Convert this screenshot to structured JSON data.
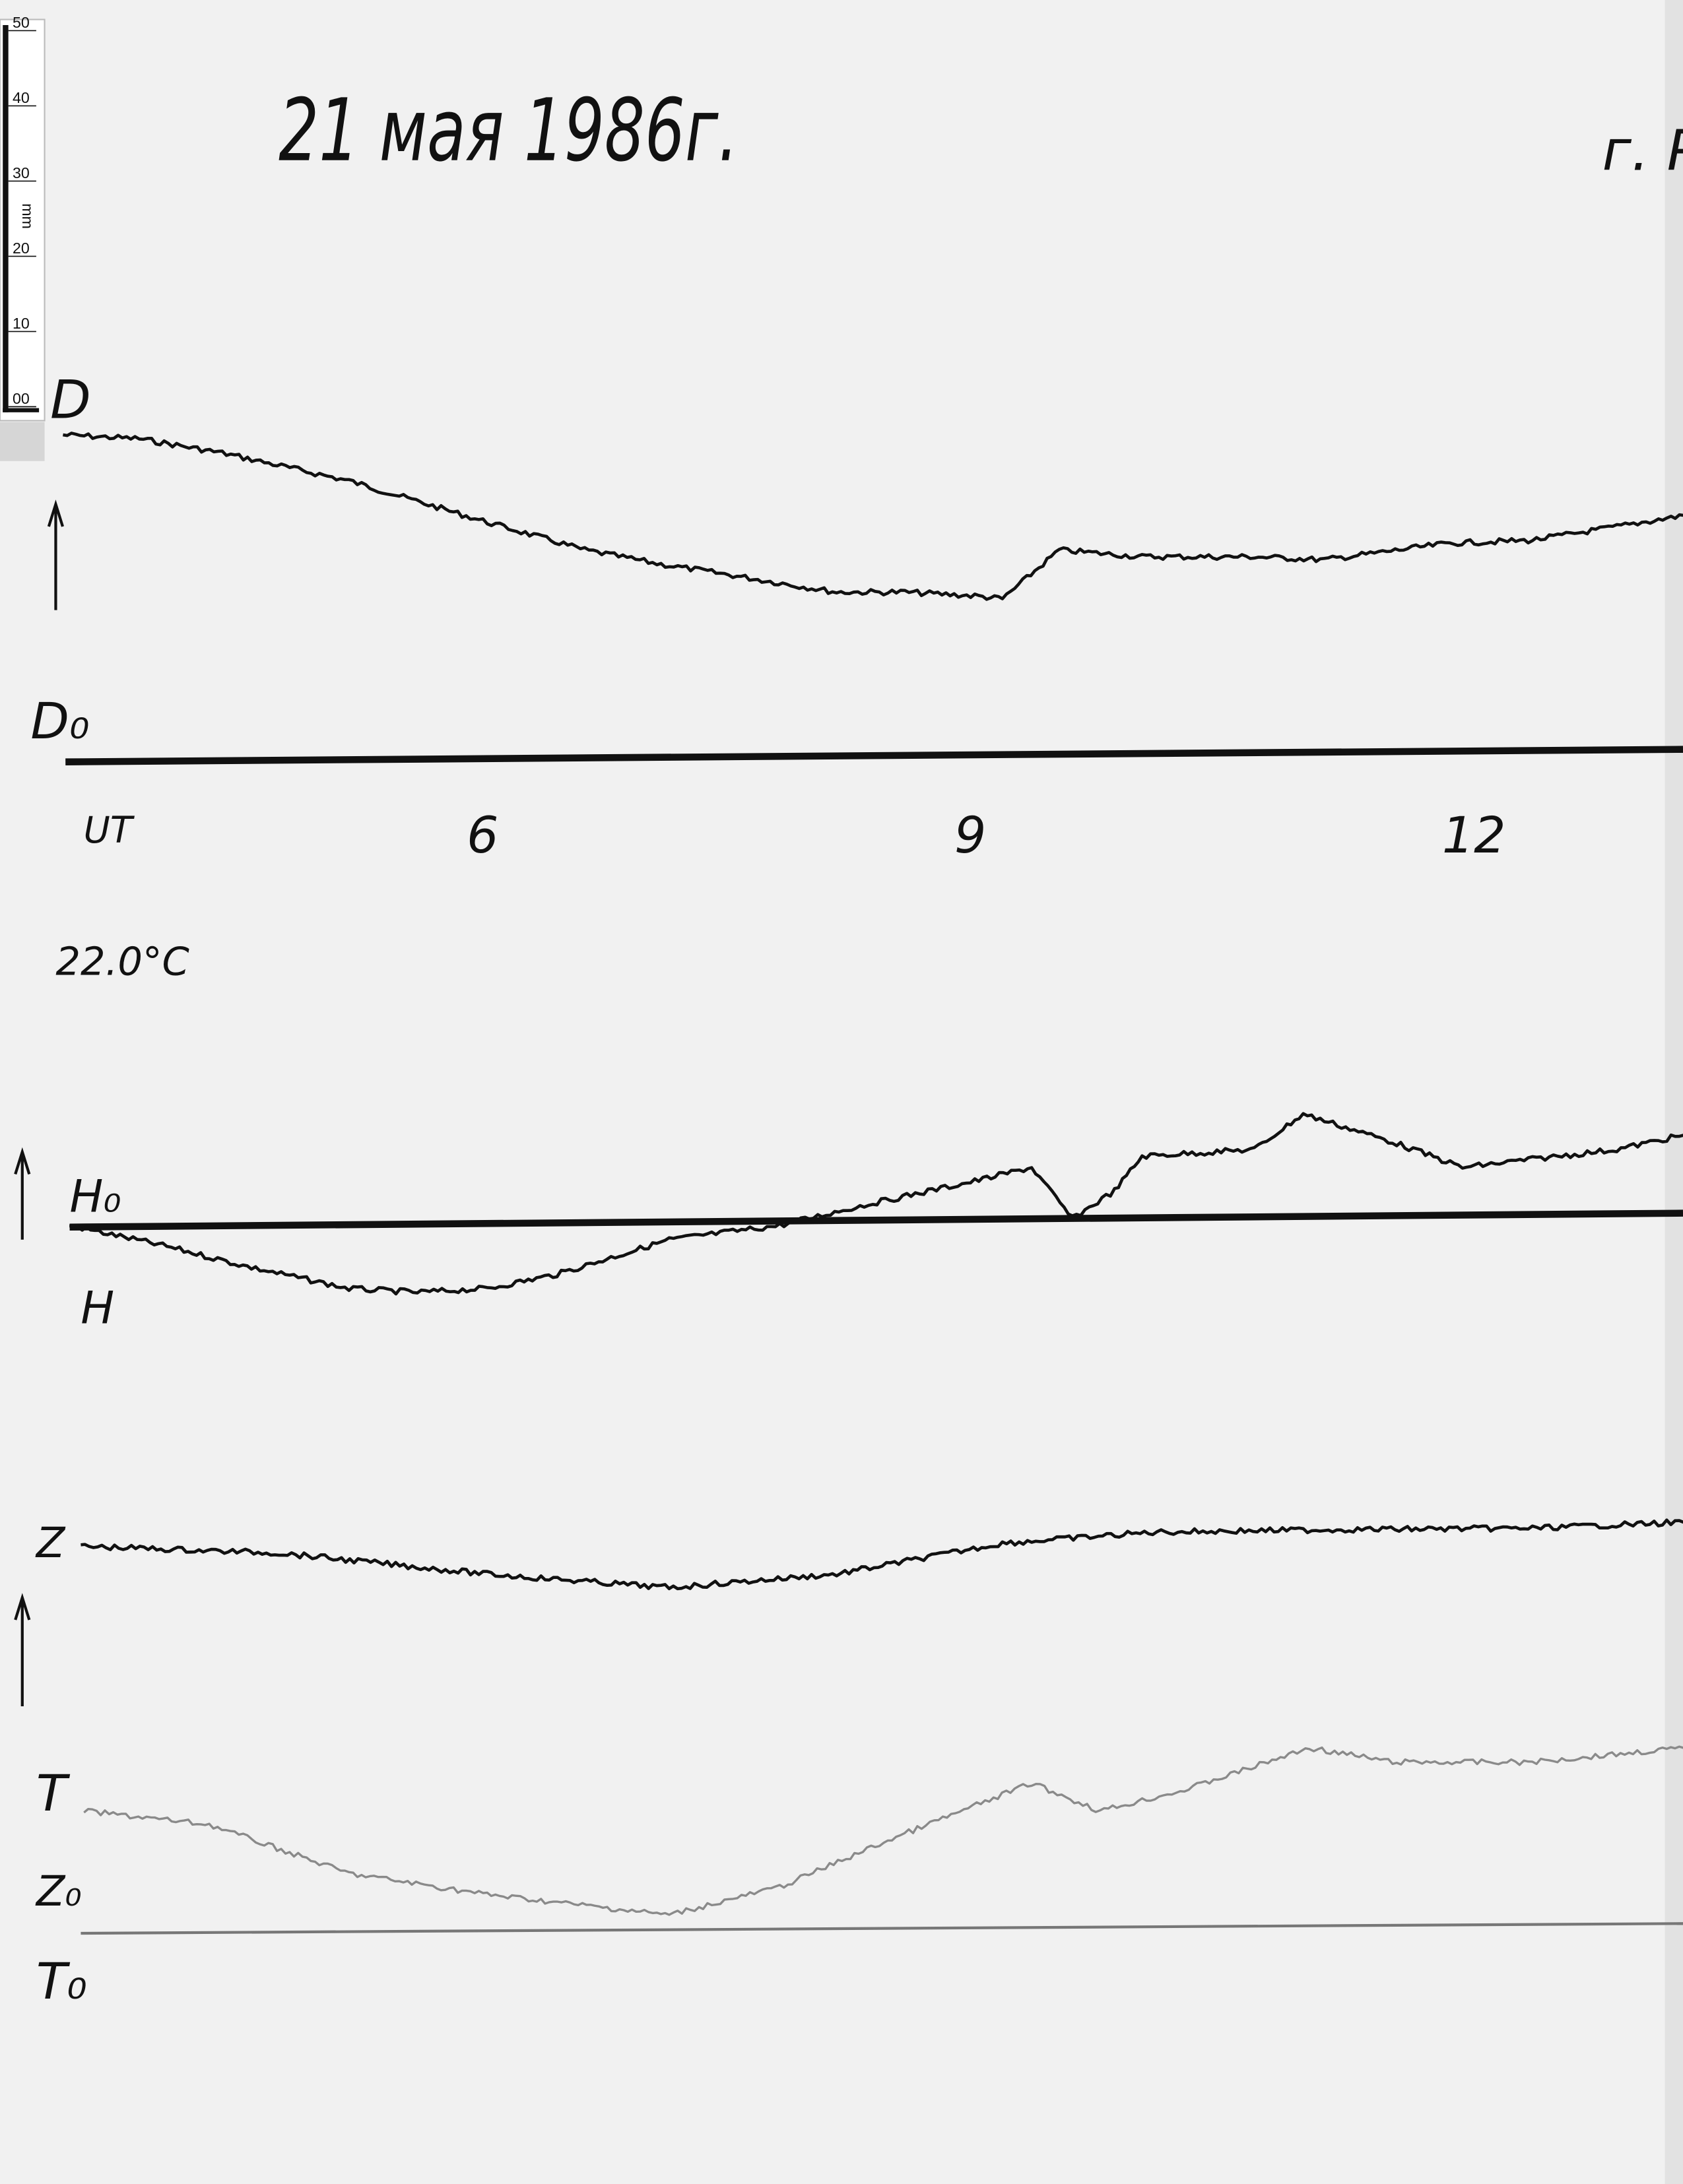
{
  "header": {
    "date": "21 мая 1986г.",
    "place": "г. Р"
  },
  "ruler": {
    "unit": "mm",
    "ticks": [
      "00",
      "10",
      "20",
      "30",
      "40",
      "50"
    ]
  },
  "temperature": "22.0°C",
  "labels": {
    "D": "D",
    "D0": "D₀",
    "H0": "H₀",
    "H": "H",
    "Z": "Z",
    "T": "T",
    "Z0": "Z₀",
    "T0": "T₀"
  },
  "chart_data": {
    "type": "line",
    "title": "21 мая 1986г.",
    "xlabel": "UT",
    "x_tick_labels": [
      "6",
      "9",
      "12"
    ],
    "x_ticks": [
      6,
      9,
      12
    ],
    "xlim": [
      3.4,
      13.4
    ],
    "y_unit": "mm",
    "grid": false,
    "series": [
      {
        "name": "D",
        "baseline": "D₀",
        "color": "#111111",
        "x": [
          3.43,
          3.9,
          4.41,
          5.19,
          6.04,
          6.64,
          7.11,
          7.5,
          8.19,
          8.61,
          9.04,
          9.21,
          9.56,
          10.07,
          10.76,
          11.19,
          11.96,
          12.47,
          12.99,
          13.4
        ],
        "y": [
          43.1,
          42.6,
          40.7,
          37.0,
          31.5,
          27.8,
          25.9,
          24.6,
          22.2,
          22.2,
          21.7,
          21.3,
          27.8,
          26.9,
          26.9,
          26.5,
          28.7,
          29.1,
          30.9,
          32.4
        ]
      },
      {
        "name": "H",
        "baseline": "H₀",
        "color": "#111111",
        "x": [
          3.47,
          4.07,
          4.59,
          5.19,
          5.61,
          6.04,
          6.47,
          7.16,
          7.84,
          8.36,
          9.04,
          9.39,
          9.64,
          9.9,
          10.07,
          10.76,
          11.06,
          11.61,
          12.04,
          12.47,
          12.99,
          13.4
        ],
        "y": [
          -0.7,
          -3.5,
          -6.3,
          -9.1,
          -9.6,
          -9.1,
          -7.2,
          -2.6,
          -0.7,
          2.0,
          5.2,
          7.0,
          0.2,
          3.9,
          8.5,
          9.4,
          14.1,
          10.4,
          7.0,
          8.1,
          9.4,
          11.3
        ]
      },
      {
        "name": "Z",
        "baseline": "Z₀",
        "color": "#111111",
        "x": [
          3.54,
          4.76,
          6.04,
          7.16,
          8.19,
          9.21,
          10.16,
          11.19,
          12.47,
          13.4
        ],
        "y": [
          50.9,
          50.0,
          47.2,
          45.4,
          47.2,
          51.3,
          52.8,
          53.1,
          53.3,
          54.1
        ]
      },
      {
        "name": "T",
        "baseline": "T₀",
        "color": "#8a8a8a",
        "x": [
          3.56,
          4.33,
          5.19,
          6.04,
          7.16,
          7.84,
          8.53,
          9.39,
          9.81,
          10.33,
          11.1,
          11.61,
          12.47,
          13.4
        ],
        "y": [
          15.7,
          13.9,
          7.4,
          4.6,
          1.9,
          5.6,
          12.0,
          19.4,
          15.7,
          18.5,
          24.1,
          22.2,
          22.2,
          24.1
        ]
      }
    ]
  }
}
